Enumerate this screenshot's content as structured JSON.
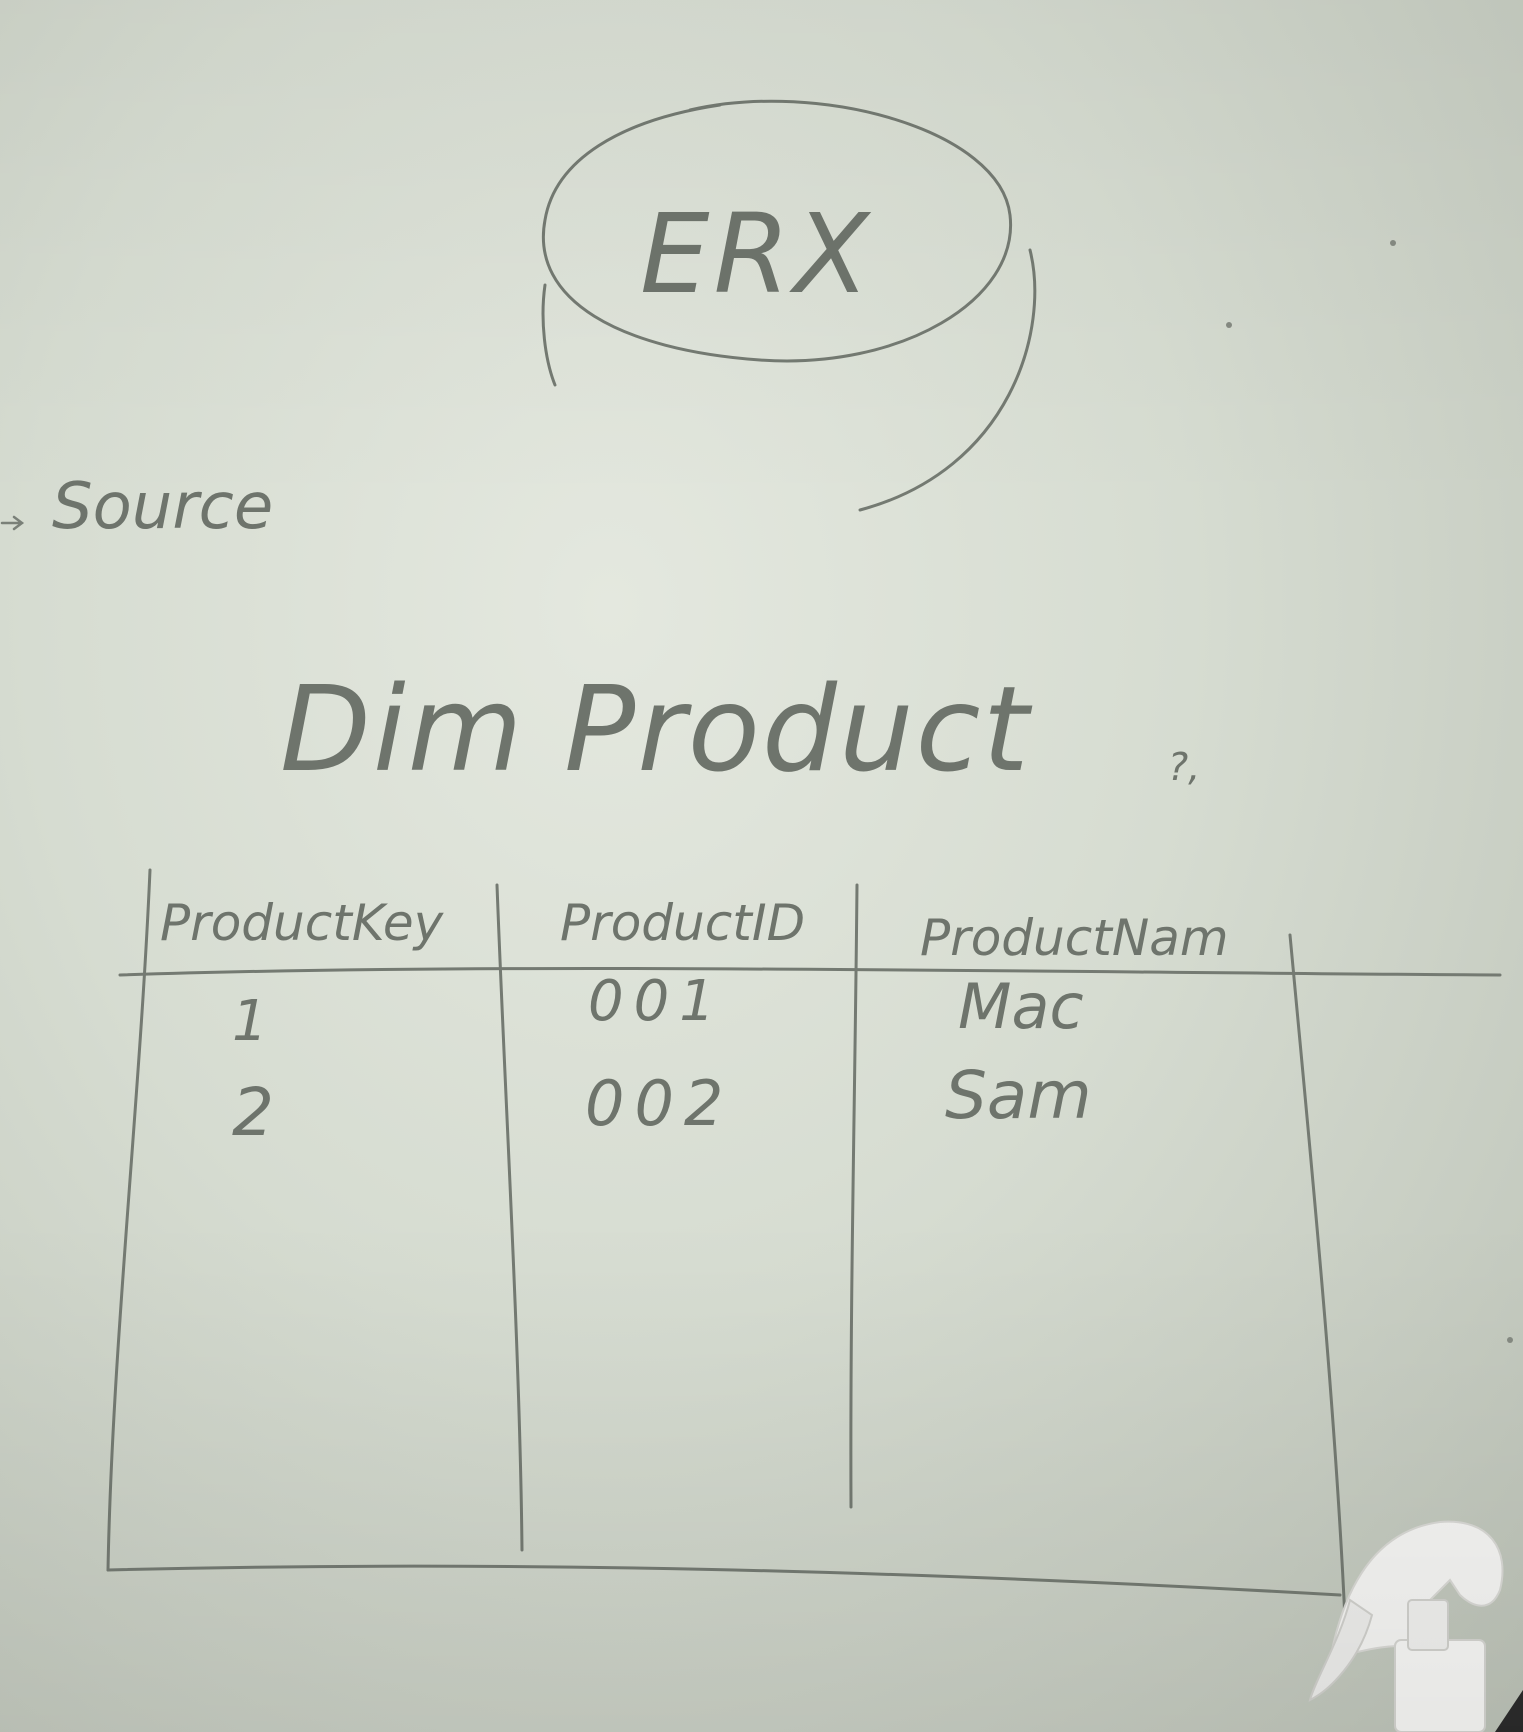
{
  "bubble": {
    "label": "ERX"
  },
  "arrow_label": "Source",
  "table": {
    "title": "Dim Product",
    "columns": [
      "ProductKey",
      "ProductID",
      "ProductNam"
    ],
    "rows": [
      [
        "1",
        "001",
        "Mac"
      ],
      [
        "2",
        "002",
        "Sam"
      ]
    ]
  },
  "margin_mark": "?,",
  "icons": {
    "spray_bottle": "spray-bottle-icon"
  },
  "colors": {
    "board": "#d6dcd1",
    "ink": "#6e746c",
    "bottle": "#f4f4f2"
  }
}
